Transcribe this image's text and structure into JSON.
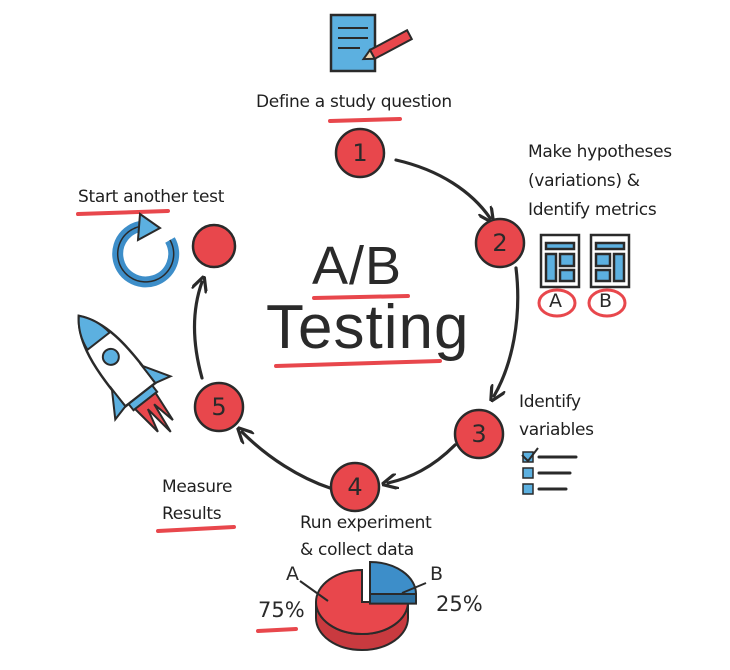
{
  "title": {
    "line1": "A/B",
    "line2": "Testing"
  },
  "steps": [
    {
      "number": "1",
      "label": "Define a study question"
    },
    {
      "number": "2",
      "label_lines": [
        "Make hypotheses",
        "(variations) &",
        "Identify metrics"
      ]
    },
    {
      "number": "3",
      "label_lines": [
        "Identify",
        "variables"
      ]
    },
    {
      "number": "4",
      "label_lines": [
        "Run experiment",
        "& collect data"
      ]
    },
    {
      "number": "5",
      "label_lines": [
        "Measure",
        "Results"
      ]
    }
  ],
  "restart": {
    "label": "Start another test"
  },
  "variants": {
    "a": "A",
    "b": "B"
  },
  "pie": {
    "a_label": "A",
    "b_label": "B",
    "a_percent": "75%",
    "b_percent": "25%",
    "a_value": 75,
    "b_value": 25
  },
  "colors": {
    "accent_red": "#e8474c",
    "blue": "#3d8ec9",
    "ink": "#2a2a2a"
  }
}
